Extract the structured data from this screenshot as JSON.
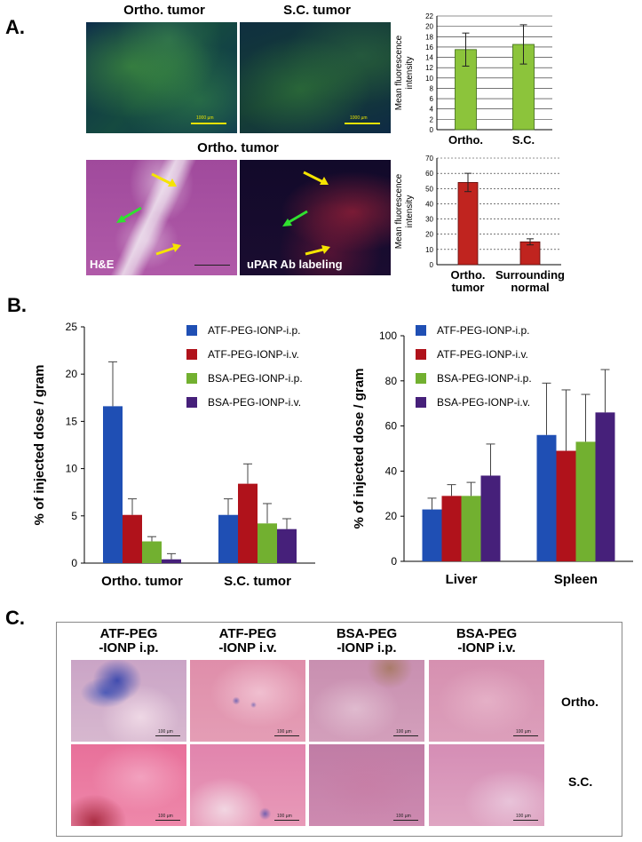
{
  "panel_labels": {
    "a": "A.",
    "b": "B.",
    "c": "C."
  },
  "panel_a": {
    "fluor_titles": [
      "Ortho. tumor",
      "S.C. tumor"
    ],
    "fluor_scale_bar": "1000 µm",
    "fluor_scale_bar_2": "1000 µm",
    "lower_title": "Ortho. tumor",
    "he_label": "H&E",
    "upar_label": "uPAR Ab labeling"
  },
  "panel_c": {
    "columns": [
      "ATF-PEG\n-IONP i.p.",
      "ATF-PEG\n-IONP i.v.",
      "BSA-PEG\n-IONP i.p.",
      "BSA-PEG\n-IONP i.v."
    ],
    "rows": [
      "Ortho.",
      "S.C."
    ],
    "scale_bar_text": "100 µm"
  },
  "colors": {
    "green_bar": "#8cc43b",
    "red_bar": "#c0241f",
    "blue": "#1f4fb4",
    "dark_red": "#b0121b",
    "green": "#72b030",
    "purple": "#46207a"
  },
  "chart_data": [
    {
      "type": "bar",
      "categories": [
        "Ortho.",
        "S.C."
      ],
      "values": [
        15.5,
        16.5
      ],
      "errors": [
        3.2,
        3.8
      ],
      "ylabel": "Mean fluorescence intensity",
      "ylim": [
        0,
        22
      ],
      "yticks": [
        0,
        2,
        4,
        6,
        8,
        10,
        12,
        14,
        16,
        18,
        20,
        22
      ],
      "grid": true
    },
    {
      "type": "bar",
      "categories": [
        "Ortho.\ntumor",
        "Surrounding\nnormal"
      ],
      "values": [
        54,
        15
      ],
      "errors": [
        6,
        2
      ],
      "ylabel": "Mean fluorescence intensity",
      "ylim": [
        0,
        70
      ],
      "yticks": [
        0,
        10,
        20,
        30,
        40,
        50,
        60,
        70
      ],
      "grid": true
    },
    {
      "type": "bar",
      "categories": [
        "Ortho. tumor",
        "S.C. tumor"
      ],
      "series": [
        {
          "name": "ATF-PEG-IONP-i.p.",
          "values": [
            16.6,
            5.1
          ],
          "errors": [
            4.7,
            1.7
          ]
        },
        {
          "name": "ATF-PEG-IONP-i.v.",
          "values": [
            5.1,
            8.4
          ],
          "errors": [
            1.7,
            2.1
          ]
        },
        {
          "name": "BSA-PEG-IONP-i.p.",
          "values": [
            2.3,
            4.2
          ],
          "errors": [
            0.5,
            2.1
          ]
        },
        {
          "name": "BSA-PEG-IONP-i.v.",
          "values": [
            0.4,
            3.6
          ],
          "errors": [
            0.6,
            1.1
          ]
        }
      ],
      "ylabel": "% of injected dose / gram",
      "ylim": [
        0,
        25
      ],
      "yticks": [
        0,
        5,
        10,
        15,
        20,
        25
      ],
      "legend": "top-right"
    },
    {
      "type": "bar",
      "categories": [
        "Liver",
        "Spleen"
      ],
      "series": [
        {
          "name": "ATF-PEG-IONP-i.p.",
          "values": [
            23,
            56
          ],
          "errors": [
            5,
            23
          ]
        },
        {
          "name": "ATF-PEG-IONP-i.v.",
          "values": [
            29,
            49
          ],
          "errors": [
            5,
            27
          ]
        },
        {
          "name": "BSA-PEG-IONP-i.p.",
          "values": [
            29,
            53
          ],
          "errors": [
            6,
            21
          ]
        },
        {
          "name": "BSA-PEG-IONP-i.v.",
          "values": [
            38,
            66
          ],
          "errors": [
            14,
            19
          ]
        }
      ],
      "ylabel": "% of injected dose / gram",
      "ylim": [
        0,
        100
      ],
      "yticks": [
        0,
        20,
        40,
        60,
        80,
        100
      ],
      "legend": "top"
    }
  ]
}
